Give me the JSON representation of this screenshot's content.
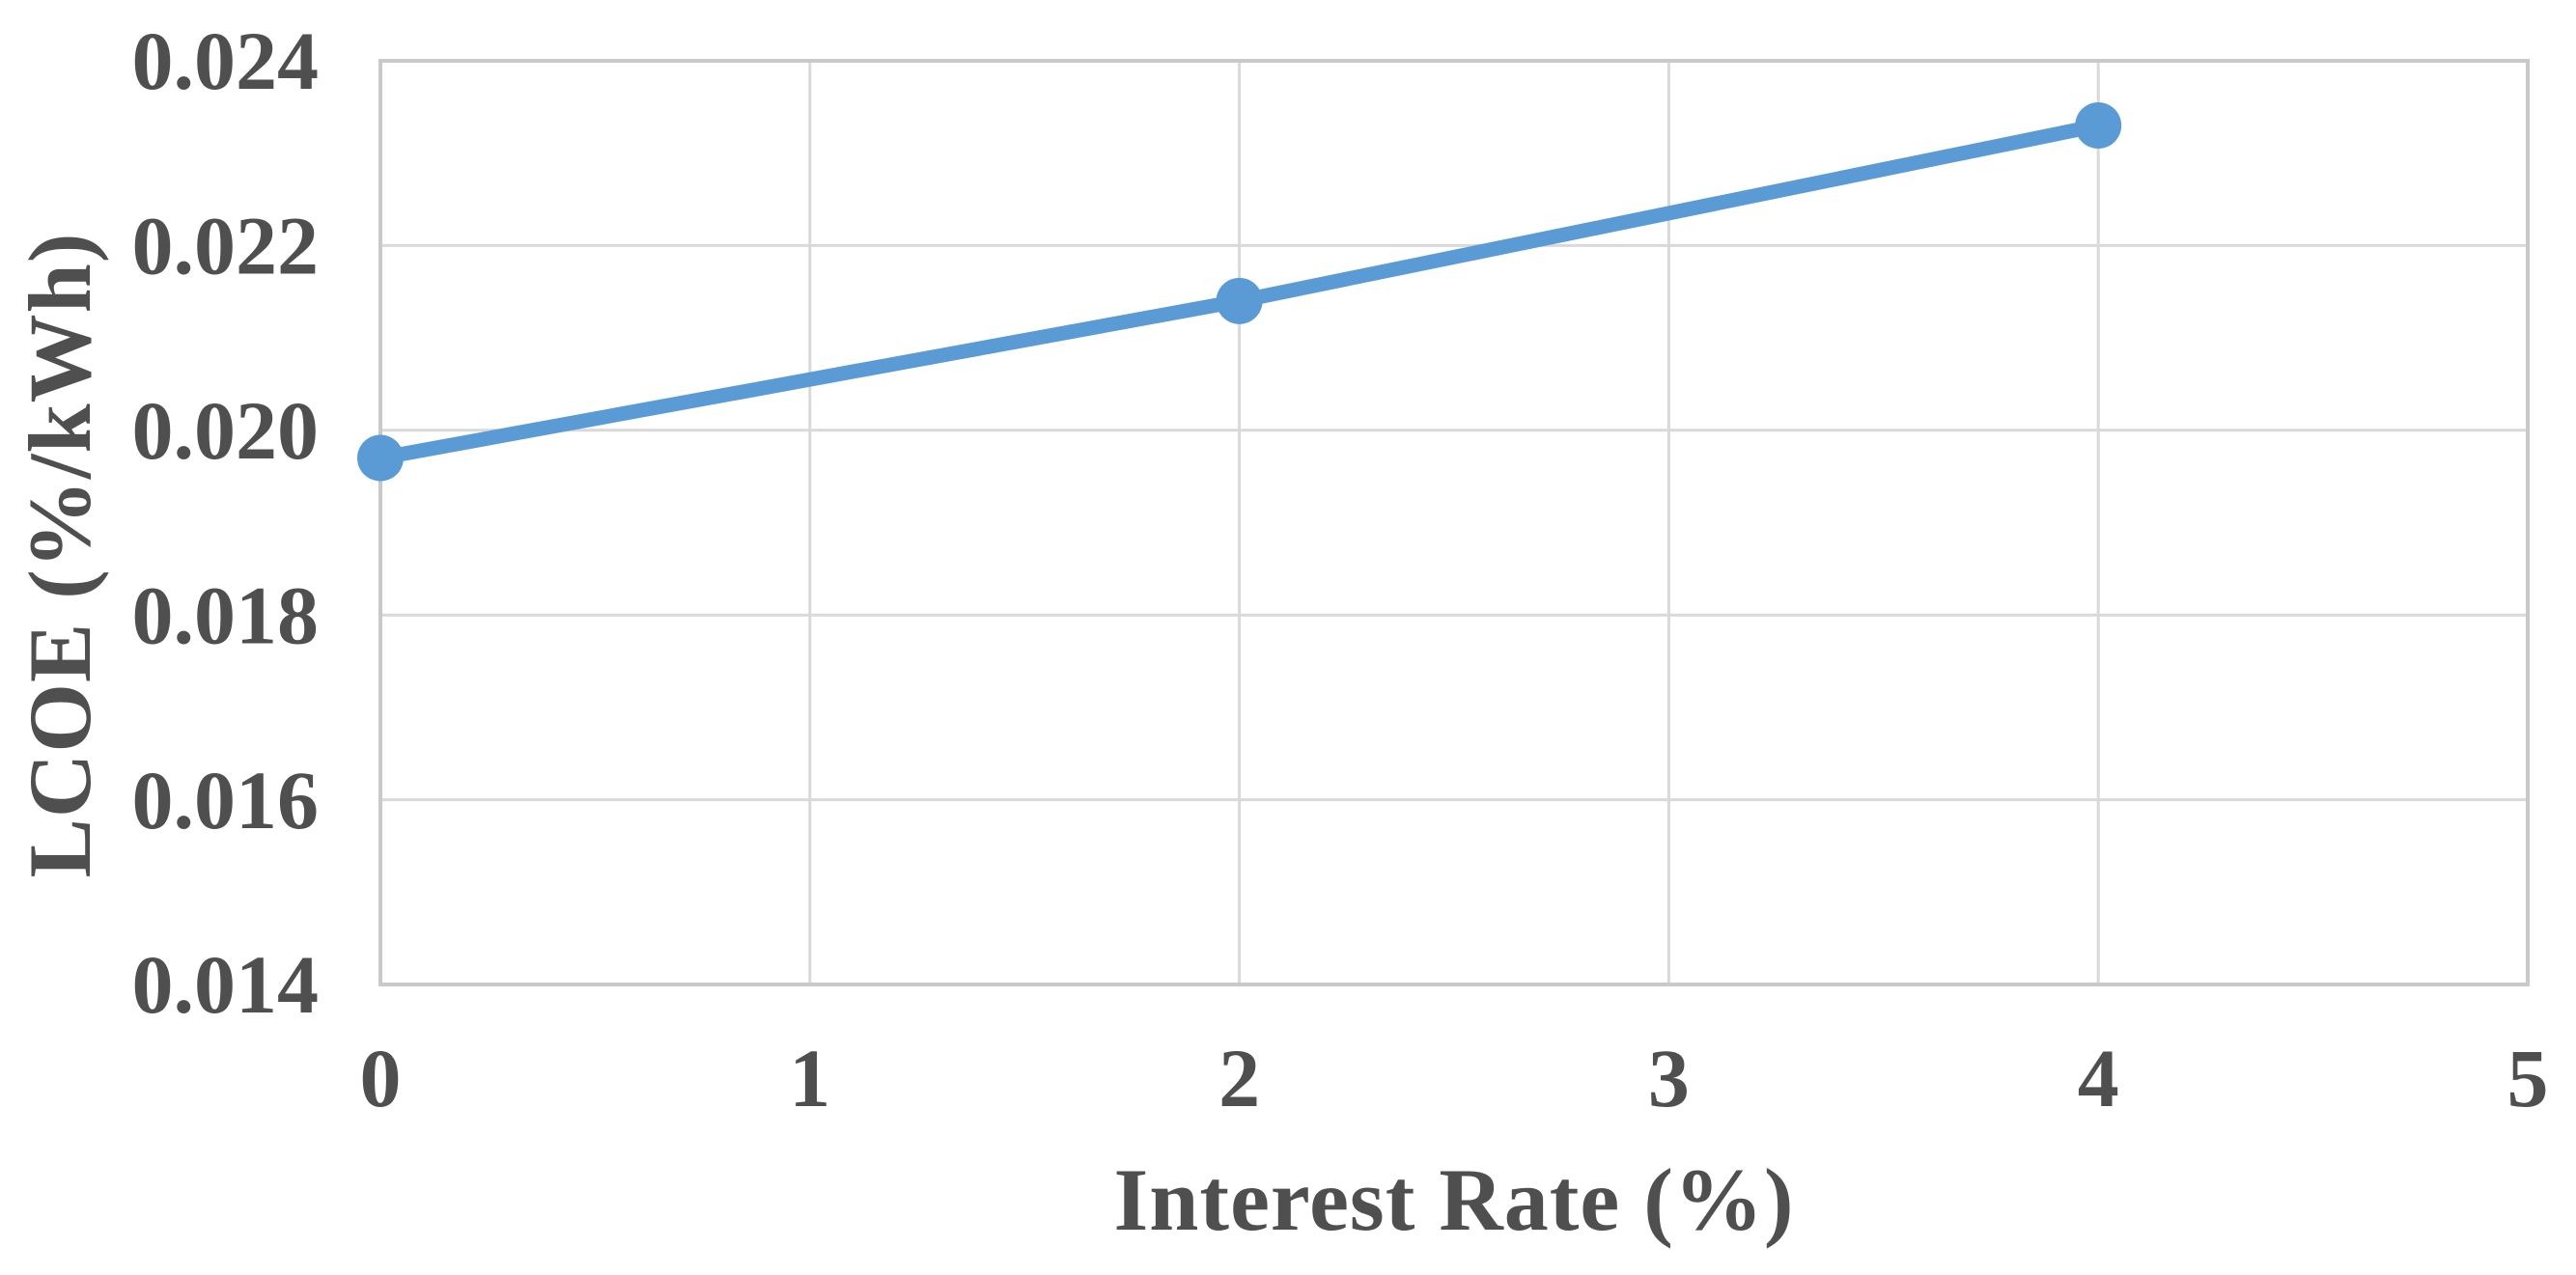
{
  "page": {
    "background": "#FFFFFF"
  },
  "chart_data": {
    "type": "line",
    "x": [
      0,
      2,
      4
    ],
    "y": [
      0.0197,
      0.0214,
      0.0233
    ],
    "title": "",
    "xlabel": "Interest Rate (%)",
    "ylabel": "LCOE (%/kWh)",
    "xlim": [
      0,
      5
    ],
    "ylim": [
      0.014,
      0.024
    ],
    "xticks": [
      0,
      1,
      2,
      3,
      4,
      5
    ],
    "xtick_labels": [
      "0",
      "1",
      "2",
      "3",
      "4",
      "5"
    ],
    "yticks": [
      0.014,
      0.016,
      0.018,
      0.02,
      0.022,
      0.024
    ],
    "ytick_labels": [
      "0.014",
      "0.016",
      "0.018",
      "0.020",
      "0.022",
      "0.024"
    ],
    "grid": true,
    "legend": false,
    "marker": "circle",
    "colors": {
      "line": "#5B9BD5",
      "marker": "#5B9BD5",
      "grid": "#D9D9D9",
      "plot_border": "#C9C9C9",
      "text": "#4F4F4F",
      "background": "#FFFFFF"
    }
  }
}
